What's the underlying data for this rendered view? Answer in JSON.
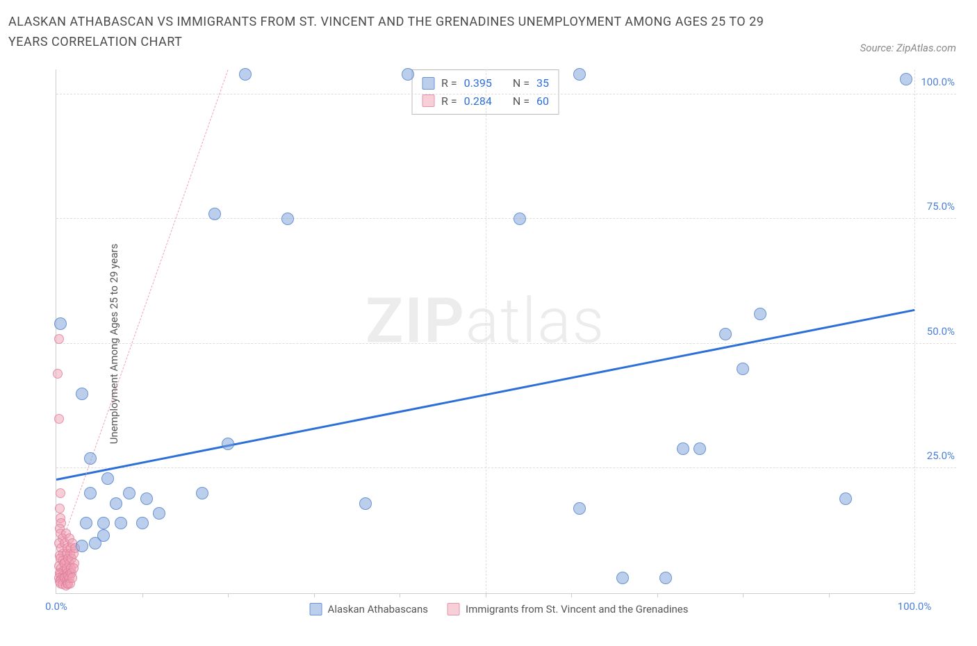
{
  "title": "ALASKAN ATHABASCAN VS IMMIGRANTS FROM ST. VINCENT AND THE GRENADINES UNEMPLOYMENT AMONG AGES 25 TO 29 YEARS CORRELATION CHART",
  "source": "Source: ZipAtlas.com",
  "y_axis_label": "Unemployment Among Ages 25 to 29 years",
  "watermark_a": "ZIP",
  "watermark_b": "atlas",
  "chart": {
    "type": "scatter",
    "xlim": [
      0,
      100
    ],
    "ylim": [
      0,
      105
    ],
    "x_ticks": [
      0,
      100
    ],
    "x_tick_labels": [
      "0.0%",
      "100.0%"
    ],
    "y_ticks": [
      25,
      50,
      75,
      100
    ],
    "y_tick_labels": [
      "25.0%",
      "50.0%",
      "75.0%",
      "100.0%"
    ],
    "grid_color": "#dddddd",
    "background_color": "#ffffff",
    "series": [
      {
        "name": "Alaskan Athabascans",
        "color_fill": "rgba(120,160,220,0.5)",
        "color_stroke": "rgba(70,120,200,0.7)",
        "marker_size": 18,
        "R": "0.395",
        "N": "35",
        "trend": {
          "x1": 0,
          "y1": 23,
          "x2": 100,
          "y2": 57,
          "color": "#2d6fd8",
          "width": 2.5,
          "dash": false
        },
        "points": [
          [
            0.5,
            54
          ],
          [
            3,
            40
          ],
          [
            4,
            27
          ],
          [
            4,
            20
          ],
          [
            6,
            23
          ],
          [
            5.5,
            14
          ],
          [
            7,
            18
          ],
          [
            7.5,
            14
          ],
          [
            8.5,
            20
          ],
          [
            10,
            14
          ],
          [
            10.5,
            19
          ],
          [
            12,
            16
          ],
          [
            36,
            18
          ],
          [
            17,
            20
          ],
          [
            20,
            30
          ],
          [
            18.5,
            76
          ],
          [
            27,
            75
          ],
          [
            22,
            104
          ],
          [
            3,
            9.5
          ],
          [
            3.5,
            14
          ],
          [
            4.5,
            10
          ],
          [
            5.5,
            11.5
          ],
          [
            61,
            17
          ],
          [
            66,
            3
          ],
          [
            71,
            3
          ],
          [
            54,
            75
          ],
          [
            61,
            104
          ],
          [
            73,
            29
          ],
          [
            75,
            29
          ],
          [
            78,
            52
          ],
          [
            80,
            45
          ],
          [
            82,
            56
          ],
          [
            92,
            19
          ],
          [
            99,
            103
          ],
          [
            41,
            104
          ]
        ]
      },
      {
        "name": "Immigrants from St. Vincent and the Grenadines",
        "color_fill": "rgba(240,160,180,0.5)",
        "color_stroke": "rgba(220,120,150,0.7)",
        "marker_size": 14,
        "R": "0.284",
        "N": "60",
        "trend": {
          "x1": 0,
          "y1": 7,
          "x2": 20,
          "y2": 105,
          "color": "#f0a0b4",
          "width": 1.5,
          "dash": true
        },
        "points": [
          [
            0.3,
            51
          ],
          [
            0.2,
            44
          ],
          [
            0.3,
            35
          ],
          [
            0.5,
            20
          ],
          [
            0.4,
            17
          ],
          [
            0.5,
            15
          ],
          [
            0.6,
            14
          ],
          [
            0.4,
            13
          ],
          [
            0.5,
            12
          ],
          [
            0.7,
            11
          ],
          [
            0.3,
            10
          ],
          [
            0.6,
            9
          ],
          [
            0.8,
            8
          ],
          [
            0.4,
            7.5
          ],
          [
            0.5,
            7
          ],
          [
            0.7,
            6.5
          ],
          [
            0.9,
            6
          ],
          [
            0.3,
            5.5
          ],
          [
            0.6,
            5
          ],
          [
            0.8,
            4.5
          ],
          [
            0.4,
            4
          ],
          [
            0.5,
            3.8
          ],
          [
            0.7,
            3.5
          ],
          [
            0.9,
            3.2
          ],
          [
            0.3,
            3
          ],
          [
            0.6,
            2.8
          ],
          [
            0.8,
            2.5
          ],
          [
            0.4,
            2.3
          ],
          [
            0.5,
            2
          ],
          [
            0.7,
            1.8
          ],
          [
            1.0,
            10
          ],
          [
            1.2,
            8
          ],
          [
            1.1,
            12
          ],
          [
            1.3,
            9
          ],
          [
            1.0,
            6
          ],
          [
            1.4,
            7
          ],
          [
            1.2,
            5
          ],
          [
            1.5,
            11
          ],
          [
            1.3,
            4
          ],
          [
            1.6,
            8
          ],
          [
            1.0,
            3
          ],
          [
            1.2,
            2.5
          ],
          [
            1.4,
            3.5
          ],
          [
            1.1,
            1.5
          ],
          [
            1.5,
            6
          ],
          [
            1.7,
            9
          ],
          [
            1.3,
            2
          ],
          [
            1.6,
            4
          ],
          [
            1.8,
            7
          ],
          [
            1.4,
            1.8
          ],
          [
            1.9,
            10
          ],
          [
            1.5,
            3
          ],
          [
            1.7,
            5
          ],
          [
            2.0,
            8
          ],
          [
            1.6,
            2
          ],
          [
            1.8,
            4
          ],
          [
            2.1,
            6
          ],
          [
            1.9,
            3
          ],
          [
            2.2,
            9
          ],
          [
            2.0,
            5
          ]
        ]
      }
    ]
  },
  "stats_box": {
    "rows": [
      {
        "swatch": "blue",
        "r_label": "R =",
        "r_val": "0.395",
        "n_label": "N =",
        "n_val": "35"
      },
      {
        "swatch": "pink",
        "r_label": "R =",
        "r_val": "0.284",
        "n_label": "N =",
        "n_val": "60"
      }
    ]
  },
  "bottom_legend": [
    {
      "swatch": "blue",
      "label": "Alaskan Athabascans"
    },
    {
      "swatch": "pink",
      "label": "Immigrants from St. Vincent and the Grenadines"
    }
  ]
}
